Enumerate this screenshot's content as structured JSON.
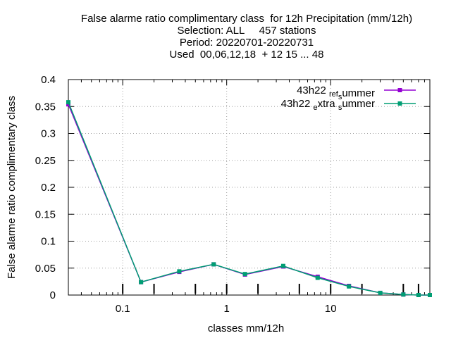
{
  "title_lines": [
    "False alarme ratio complimentary class  for 12h Precipitation (mm/12h)",
    "Selection: ALL     457 stations",
    "Period: 20220701-20220731",
    "Used  00,06,12,18  + 12 15 ... 48"
  ],
  "chart_data": {
    "type": "line",
    "xlabel": "classes mm/12h",
    "ylabel": "False alarme ratio complimentary class",
    "x_scale": "log",
    "xlim": [
      0.03,
      90
    ],
    "ylim": [
      0,
      0.4
    ],
    "x_ticks": [
      {
        "value": 0.1,
        "label": "0.1"
      },
      {
        "value": 1,
        "label": "1"
      },
      {
        "value": 10,
        "label": "10"
      }
    ],
    "y_ticks": [
      {
        "value": 0,
        "label": "0"
      },
      {
        "value": 0.05,
        "label": "0.05"
      },
      {
        "value": 0.1,
        "label": "0.1"
      },
      {
        "value": 0.15,
        "label": "0.15"
      },
      {
        "value": 0.2,
        "label": "0.2"
      },
      {
        "value": 0.25,
        "label": "0.25"
      },
      {
        "value": 0.3,
        "label": "0.3"
      },
      {
        "value": 0.35,
        "label": "0.35"
      },
      {
        "value": 0.4,
        "label": "0.4"
      }
    ],
    "grid": true,
    "legend_position": "top-right",
    "class_markers": [
      0.1,
      0.2,
      0.5,
      1,
      2,
      5,
      10,
      20,
      50,
      70
    ],
    "series": [
      {
        "name": "43h22 ref summer",
        "legend_parts": [
          [
            "43h22 ",
            "n"
          ],
          [
            "ref",
            "sub"
          ],
          [
            "s",
            "sub"
          ],
          [
            "ummer",
            "n"
          ]
        ],
        "color": "#9400d3",
        "x": [
          0.03,
          0.15,
          0.35,
          0.75,
          1.5,
          3.5,
          7.5,
          15,
          30,
          50,
          70,
          90
        ],
        "y": [
          0.354,
          0.024,
          0.043,
          0.057,
          0.038,
          0.053,
          0.034,
          0.017,
          0.004,
          0.001,
          0.0,
          0.0
        ]
      },
      {
        "name": "43h22 extra summer",
        "legend_parts": [
          [
            "43h22 ",
            "n"
          ],
          [
            "e",
            "sub"
          ],
          [
            "xtra ",
            "n"
          ],
          [
            "s",
            "sub"
          ],
          [
            "ummer",
            "n"
          ]
        ],
        "color": "#009e73",
        "x": [
          0.03,
          0.15,
          0.35,
          0.75,
          1.5,
          3.5,
          7.5,
          15,
          30,
          50,
          70,
          90
        ],
        "y": [
          0.358,
          0.024,
          0.044,
          0.057,
          0.039,
          0.054,
          0.032,
          0.016,
          0.004,
          0.001,
          0.0,
          0.0
        ]
      }
    ]
  }
}
